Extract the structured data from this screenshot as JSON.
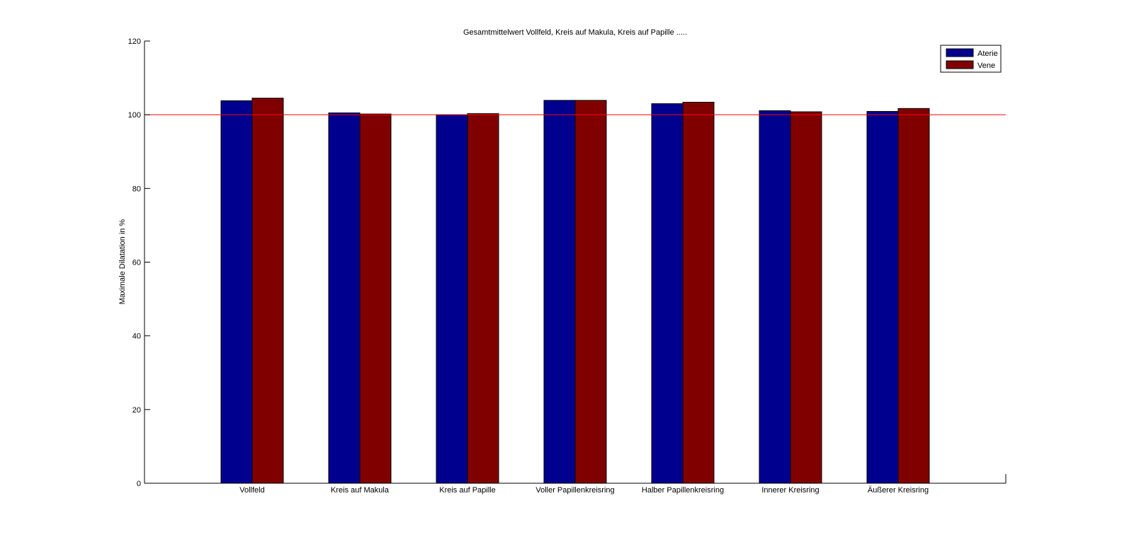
{
  "chart_data": {
    "type": "bar",
    "title": "Gesamtmittelwert Vollfeld, Kreis auf Makula, Kreis auf Papille .....",
    "xlabel": "",
    "ylabel": "Maximale Dilatation in %",
    "ylim": [
      0,
      120
    ],
    "yticks": [
      "0",
      "20",
      "40",
      "60",
      "80",
      "100",
      "120"
    ],
    "categories": [
      "Vollfeld",
      "Kreis auf Makula",
      "Kreis auf Papille",
      "Voller Papillenkreisring",
      "Halber Papillenkreisring",
      "Innerer Kreisring",
      "Äußerer Kreisring"
    ],
    "series": [
      {
        "name": "Aterie",
        "color": "#00008f",
        "values": [
          103.8,
          100.5,
          100.0,
          103.9,
          103.0,
          101.1,
          100.9
        ]
      },
      {
        "name": "Vene",
        "color": "#800000",
        "values": [
          104.5,
          100.2,
          100.3,
          103.9,
          103.4,
          100.8,
          101.7
        ]
      }
    ],
    "reference_line": {
      "value": 100,
      "color": "#ff0000"
    },
    "legend_placement": "top-right",
    "grid": false
  }
}
